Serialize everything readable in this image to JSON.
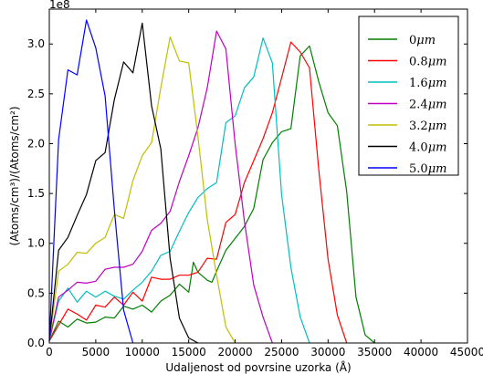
{
  "chart_data": {
    "type": "line",
    "xlabel": "Udaljenost od povrsine uzorka (Å)",
    "ylabel": "(Atoms/cm³)/(Atoms/cm²)",
    "y_exponent_label": "1e8",
    "xlim": [
      0,
      45000
    ],
    "ylim": [
      0,
      3.35
    ],
    "x_ticks": [
      0,
      5000,
      10000,
      15000,
      20000,
      25000,
      30000,
      35000,
      40000,
      45000
    ],
    "x_tick_labels": [
      "0",
      "5000",
      "10000",
      "15000",
      "20000",
      "25000",
      "30000",
      "35000",
      "40000",
      "45000"
    ],
    "y_ticks": [
      0,
      0.5,
      1.0,
      1.5,
      2.0,
      2.5,
      3.0
    ],
    "y_tick_labels": [
      "0.0",
      "0.5",
      "1.0",
      "1.5",
      "2.0",
      "2.5",
      "3.0"
    ],
    "grid": false,
    "legend_position": "top-right",
    "series": [
      {
        "name": "0μm",
        "legend_value": "0",
        "color": "#007f00",
        "points": [
          [
            0,
            0.02
          ],
          [
            1000,
            0.22
          ],
          [
            2000,
            0.16
          ],
          [
            3000,
            0.24
          ],
          [
            4000,
            0.2
          ],
          [
            5000,
            0.21
          ],
          [
            6000,
            0.26
          ],
          [
            7000,
            0.25
          ],
          [
            8000,
            0.37
          ],
          [
            9000,
            0.34
          ],
          [
            10000,
            0.38
          ],
          [
            11000,
            0.31
          ],
          [
            12000,
            0.42
          ],
          [
            13000,
            0.48
          ],
          [
            14000,
            0.59
          ],
          [
            15000,
            0.51
          ],
          [
            15500,
            0.81
          ],
          [
            16000,
            0.71
          ],
          [
            17000,
            0.63
          ],
          [
            17500,
            0.61
          ],
          [
            18000,
            0.72
          ],
          [
            19000,
            0.93
          ],
          [
            20000,
            1.05
          ],
          [
            21000,
            1.17
          ],
          [
            22000,
            1.35
          ],
          [
            23000,
            1.84
          ],
          [
            24000,
            2.01
          ],
          [
            25000,
            2.12
          ],
          [
            26000,
            2.15
          ],
          [
            27000,
            2.88
          ],
          [
            28000,
            2.98
          ],
          [
            29000,
            2.62
          ],
          [
            30000,
            2.31
          ],
          [
            31000,
            2.18
          ],
          [
            32000,
            1.52
          ],
          [
            33000,
            0.46
          ],
          [
            34000,
            0.08
          ],
          [
            35000,
            0.0
          ]
        ]
      },
      {
        "name": "0.8μm",
        "legend_value": "0.8",
        "color": "#ff0000",
        "points": [
          [
            0,
            0.02
          ],
          [
            1000,
            0.18
          ],
          [
            2000,
            0.34
          ],
          [
            3000,
            0.29
          ],
          [
            4000,
            0.23
          ],
          [
            5000,
            0.38
          ],
          [
            6000,
            0.36
          ],
          [
            7000,
            0.46
          ],
          [
            8000,
            0.38
          ],
          [
            9000,
            0.51
          ],
          [
            10000,
            0.42
          ],
          [
            11000,
            0.66
          ],
          [
            12000,
            0.64
          ],
          [
            13000,
            0.64
          ],
          [
            14000,
            0.68
          ],
          [
            15000,
            0.68
          ],
          [
            16000,
            0.71
          ],
          [
            17000,
            0.85
          ],
          [
            18000,
            0.84
          ],
          [
            19000,
            1.21
          ],
          [
            20000,
            1.29
          ],
          [
            21000,
            1.61
          ],
          [
            22000,
            1.83
          ],
          [
            23000,
            2.05
          ],
          [
            24000,
            2.31
          ],
          [
            25000,
            2.66
          ],
          [
            26000,
            3.02
          ],
          [
            27000,
            2.92
          ],
          [
            28000,
            2.76
          ],
          [
            29000,
            1.73
          ],
          [
            30000,
            0.84
          ],
          [
            31000,
            0.28
          ],
          [
            32000,
            0.0
          ]
        ]
      },
      {
        "name": "1.6μm",
        "legend_value": "1.6",
        "color": "#00bfbf",
        "points": [
          [
            0,
            0.02
          ],
          [
            1000,
            0.42
          ],
          [
            2000,
            0.55
          ],
          [
            3000,
            0.41
          ],
          [
            4000,
            0.52
          ],
          [
            5000,
            0.46
          ],
          [
            6000,
            0.52
          ],
          [
            7000,
            0.47
          ],
          [
            8000,
            0.44
          ],
          [
            9000,
            0.53
          ],
          [
            10000,
            0.61
          ],
          [
            11000,
            0.72
          ],
          [
            12000,
            0.88
          ],
          [
            13000,
            0.92
          ],
          [
            14000,
            1.12
          ],
          [
            15000,
            1.31
          ],
          [
            16000,
            1.46
          ],
          [
            17000,
            1.55
          ],
          [
            18000,
            1.61
          ],
          [
            19000,
            2.21
          ],
          [
            20000,
            2.28
          ],
          [
            21000,
            2.56
          ],
          [
            22000,
            2.67
          ],
          [
            23000,
            3.06
          ],
          [
            24000,
            2.81
          ],
          [
            25000,
            1.49
          ],
          [
            26000,
            0.76
          ],
          [
            27000,
            0.26
          ],
          [
            28000,
            0.0
          ]
        ]
      },
      {
        "name": "2.4μm",
        "legend_value": "2.4",
        "color": "#bf00bf",
        "points": [
          [
            0,
            0.02
          ],
          [
            1000,
            0.46
          ],
          [
            2000,
            0.53
          ],
          [
            3000,
            0.61
          ],
          [
            4000,
            0.6
          ],
          [
            5000,
            0.62
          ],
          [
            6000,
            0.74
          ],
          [
            7000,
            0.76
          ],
          [
            8000,
            0.76
          ],
          [
            9000,
            0.79
          ],
          [
            10000,
            0.92
          ],
          [
            11000,
            1.13
          ],
          [
            12000,
            1.2
          ],
          [
            13000,
            1.32
          ],
          [
            14000,
            1.62
          ],
          [
            15000,
            1.88
          ],
          [
            16000,
            2.16
          ],
          [
            17000,
            2.56
          ],
          [
            18000,
            3.13
          ],
          [
            19000,
            2.95
          ],
          [
            20000,
            1.99
          ],
          [
            21000,
            1.22
          ],
          [
            22000,
            0.58
          ],
          [
            23000,
            0.26
          ],
          [
            24000,
            0.0
          ]
        ]
      },
      {
        "name": "3.2μm",
        "legend_value": "3.2",
        "color": "#bfbf00",
        "points": [
          [
            0,
            0.02
          ],
          [
            1000,
            0.72
          ],
          [
            2000,
            0.79
          ],
          [
            3000,
            0.91
          ],
          [
            4000,
            0.9
          ],
          [
            5000,
            1.0
          ],
          [
            6000,
            1.06
          ],
          [
            7000,
            1.29
          ],
          [
            8000,
            1.25
          ],
          [
            9000,
            1.63
          ],
          [
            10000,
            1.88
          ],
          [
            11000,
            2.01
          ],
          [
            12000,
            2.56
          ],
          [
            13000,
            3.07
          ],
          [
            14000,
            2.83
          ],
          [
            15000,
            2.81
          ],
          [
            16000,
            2.07
          ],
          [
            17000,
            1.24
          ],
          [
            18000,
            0.68
          ],
          [
            19000,
            0.16
          ],
          [
            20000,
            0.0
          ]
        ]
      },
      {
        "name": "4.0μm",
        "legend_value": "4.0",
        "color": "#000000",
        "points": [
          [
            0,
            0.02
          ],
          [
            1000,
            0.93
          ],
          [
            2000,
            1.06
          ],
          [
            3000,
            1.28
          ],
          [
            4000,
            1.49
          ],
          [
            5000,
            1.83
          ],
          [
            6000,
            1.91
          ],
          [
            7000,
            2.44
          ],
          [
            8000,
            2.82
          ],
          [
            9000,
            2.71
          ],
          [
            10000,
            3.21
          ],
          [
            11000,
            2.38
          ],
          [
            12000,
            1.95
          ],
          [
            13000,
            0.85
          ],
          [
            14000,
            0.25
          ],
          [
            15000,
            0.05
          ],
          [
            16000,
            0.0
          ]
        ]
      },
      {
        "name": "5.0μm",
        "legend_value": "5.0",
        "color": "#0000ff",
        "points": [
          [
            0,
            0.02
          ],
          [
            1000,
            2.04
          ],
          [
            2000,
            2.74
          ],
          [
            3000,
            2.69
          ],
          [
            4000,
            3.24
          ],
          [
            5000,
            2.96
          ],
          [
            6000,
            2.48
          ],
          [
            7000,
            1.34
          ],
          [
            8000,
            0.33
          ],
          [
            9000,
            0.0
          ]
        ]
      }
    ]
  }
}
